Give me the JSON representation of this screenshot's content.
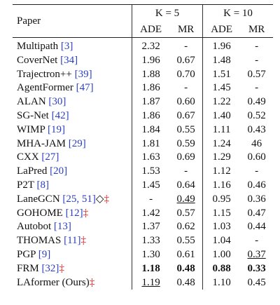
{
  "table": {
    "header": {
      "paper": "Paper",
      "groups": [
        "K = 5",
        "K = 10"
      ],
      "metrics": [
        "ADE",
        "MR",
        "ADE",
        "MR"
      ]
    },
    "rows": [
      {
        "name": "Multipath",
        "refs": "[3]",
        "cells": [
          "2.32",
          "-",
          "1.96",
          "-"
        ]
      },
      {
        "name": "CoverNet",
        "refs": "[34]",
        "cells": [
          "1.96",
          "0.67",
          "1.48",
          "-"
        ]
      },
      {
        "name": "Trajectron++",
        "refs": "[39]",
        "cells": [
          "1.88",
          "0.70",
          "1.51",
          "0.57"
        ]
      },
      {
        "name": "AgentFormer",
        "refs": "[47]",
        "cells": [
          "1.86",
          "-",
          "1.45",
          "-"
        ]
      },
      {
        "name": "ALAN",
        "refs": "[30]",
        "cells": [
          "1.87",
          "0.60",
          "1.22",
          "0.49"
        ]
      },
      {
        "name": "SG-Net",
        "refs": "[42]",
        "cells": [
          "1.86",
          "0.67",
          "1.40",
          "0.52"
        ]
      },
      {
        "name": "WIMP",
        "refs": "[19]",
        "cells": [
          "1.84",
          "0.55",
          "1.11",
          "0.43"
        ]
      },
      {
        "name": "MHA-JAM",
        "refs": "[29]",
        "cells": [
          "1.81",
          "0.59",
          "1.24",
          "46"
        ]
      },
      {
        "name": "CXX",
        "refs": "[27]",
        "cells": [
          "1.63",
          "0.69",
          "1.29",
          "0.60"
        ]
      },
      {
        "name": "LaPred",
        "refs": "[20]",
        "cells": [
          "1.53",
          "-",
          "1.12",
          "-"
        ]
      },
      {
        "name": "P2T",
        "refs": "[8]",
        "cells": [
          "1.45",
          "0.64",
          "1.16",
          "0.46"
        ]
      },
      {
        "name": "LaneGCN",
        "refs": "[25, 51]",
        "symbol": "◇",
        "mark": "‡",
        "cells": [
          "-",
          {
            "text": "0.49",
            "style": "underline"
          },
          "0.95",
          "0.36"
        ]
      },
      {
        "name": "GOHOME",
        "refs": "[12]",
        "mark": "‡",
        "cells": [
          "1.42",
          "0.57",
          "1.15",
          "0.47"
        ]
      },
      {
        "name": "Autobot",
        "refs": "[13]",
        "cells": [
          "1.37",
          "0.62",
          "1.03",
          "0.44"
        ]
      },
      {
        "name": "THOMAS",
        "refs": "[11]",
        "mark": "‡",
        "cells": [
          "1.33",
          "0.55",
          "1.04",
          "-"
        ]
      },
      {
        "name": "PGP",
        "refs": "[9]",
        "cells": [
          "1.30",
          "0.61",
          "1.00",
          {
            "text": "0.37",
            "style": "underline"
          }
        ]
      },
      {
        "name": "FRM",
        "refs": "[32]",
        "mark": "‡",
        "cells": [
          {
            "text": "1.18",
            "style": "bold"
          },
          {
            "text": "0.48",
            "style": "bold"
          },
          {
            "text": "0.88",
            "style": "bold"
          },
          {
            "text": "0.33",
            "style": "bold"
          }
        ]
      },
      {
        "name": "LAformer (Ours)",
        "mark": "‡",
        "cells": [
          {
            "text": "1.19",
            "style": "underline"
          },
          "0.48",
          "1.10",
          "0.45"
        ]
      }
    ]
  }
}
